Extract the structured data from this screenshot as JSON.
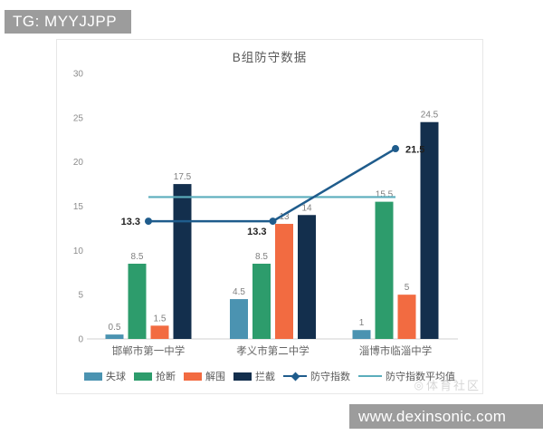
{
  "banner": {
    "text": "TG: MYYJJPP"
  },
  "footer": {
    "text": "www.dexinsonic.com"
  },
  "watermark": {
    "logo": "◎",
    "text": "体育社区"
  },
  "chart_data": {
    "type": "bar",
    "title": "B组防守数据",
    "categories": [
      "邯郸市第一中学",
      "孝义市第二中学",
      "淄博市临淄中学"
    ],
    "series": [
      {
        "key": "conceded",
        "name": "失球",
        "type": "bar",
        "color": "#4b93b1",
        "values": [
          0.5,
          4.5,
          1
        ]
      },
      {
        "key": "steals",
        "name": "抢断",
        "type": "bar",
        "color": "#2d9c6c",
        "values": [
          8.5,
          8.5,
          15.5
        ]
      },
      {
        "key": "clearances",
        "name": "解围",
        "type": "bar",
        "color": "#f26b41",
        "values": [
          1.5,
          13,
          5
        ]
      },
      {
        "key": "interceptions",
        "name": "拦截",
        "type": "bar",
        "color": "#132f4d",
        "values": [
          17.5,
          14,
          24.5
        ]
      },
      {
        "key": "defense-index",
        "name": "防守指数",
        "type": "line",
        "color": "#1f5c8c",
        "values": [
          13.3,
          13.3,
          21.5
        ]
      },
      {
        "key": "defense-index-avg",
        "name": "防守指数平均值",
        "type": "avgline",
        "color": "#5badbc",
        "value": 16.03
      }
    ],
    "ylim": [
      0,
      30
    ],
    "yticks": [
      0,
      5,
      10,
      15,
      20,
      25,
      30
    ],
    "legend_position": "bottom",
    "grid": false,
    "colors": {
      "axis": "#d9d9d9",
      "tick_label": "#8c8c8c",
      "value_label": "#808080",
      "category_label": "#666666",
      "line_point_label": "#1f1f1f"
    }
  }
}
